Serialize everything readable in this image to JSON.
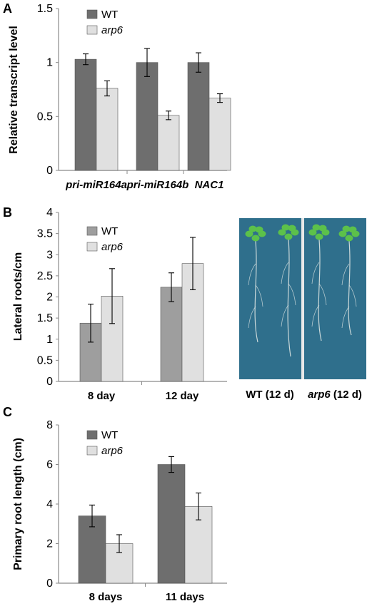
{
  "chart_data": [
    {
      "panel": "A",
      "type": "bar",
      "ylabel": "Relative transcript level",
      "ylim": [
        0,
        1.5
      ],
      "yticks": [
        "0",
        "0.5",
        "1",
        "1.5"
      ],
      "categories": [
        "pri-miR164a",
        "pri-miR164b",
        "NAC1"
      ],
      "categories_italic": true,
      "legend_position": "top-left",
      "series": [
        {
          "name": "WT",
          "italic": false,
          "color": "#6e6e6e",
          "values": [
            1.03,
            1.0,
            1.0
          ],
          "errors": [
            0.05,
            0.13,
            0.09
          ]
        },
        {
          "name": "arp6",
          "italic": true,
          "color": "#e0e0e0",
          "values": [
            0.76,
            0.51,
            0.67
          ],
          "errors": [
            0.07,
            0.04,
            0.04
          ]
        }
      ]
    },
    {
      "panel": "B",
      "type": "bar",
      "ylabel": "Lateral roots/cm",
      "ylim": [
        0,
        4
      ],
      "yticks": [
        "0",
        "0.5",
        "1",
        "1.5",
        "2",
        "2.5",
        "3",
        "3.5",
        "4"
      ],
      "categories": [
        "8 day",
        "12 day"
      ],
      "categories_italic": false,
      "legend_position": "top-left",
      "series": [
        {
          "name": "WT",
          "italic": false,
          "color": "#9e9e9e",
          "values": [
            1.38,
            2.23
          ],
          "errors": [
            0.45,
            0.34
          ]
        },
        {
          "name": "arp6",
          "italic": true,
          "color": "#e0e0e0",
          "values": [
            2.02,
            2.79
          ],
          "errors": [
            0.65,
            0.62
          ]
        }
      ],
      "photos": [
        {
          "label_main": "WT",
          "label_italic": false,
          "label_suffix": " (12 d)"
        },
        {
          "label_main": "arp6",
          "label_italic": true,
          "label_suffix": " (12 d)"
        }
      ]
    },
    {
      "panel": "C",
      "type": "bar",
      "ylabel": "Primary root length (cm)",
      "ylim": [
        0,
        8
      ],
      "yticks": [
        "0",
        "2",
        "4",
        "6",
        "8"
      ],
      "categories": [
        "8 days",
        "11 days"
      ],
      "categories_italic": false,
      "legend_position": "top-left",
      "series": [
        {
          "name": "WT",
          "italic": false,
          "color": "#6e6e6e",
          "values": [
            3.4,
            6.0
          ],
          "errors": [
            0.55,
            0.4
          ]
        },
        {
          "name": "arp6",
          "italic": true,
          "color": "#e0e0e0",
          "values": [
            2.0,
            3.88
          ],
          "errors": [
            0.45,
            0.68
          ]
        }
      ]
    }
  ],
  "colors": {
    "photo_background": "#2f6f8c",
    "leaf": "#5cc14a",
    "root": "#e8ece8",
    "axis": "#8a8a8a"
  }
}
